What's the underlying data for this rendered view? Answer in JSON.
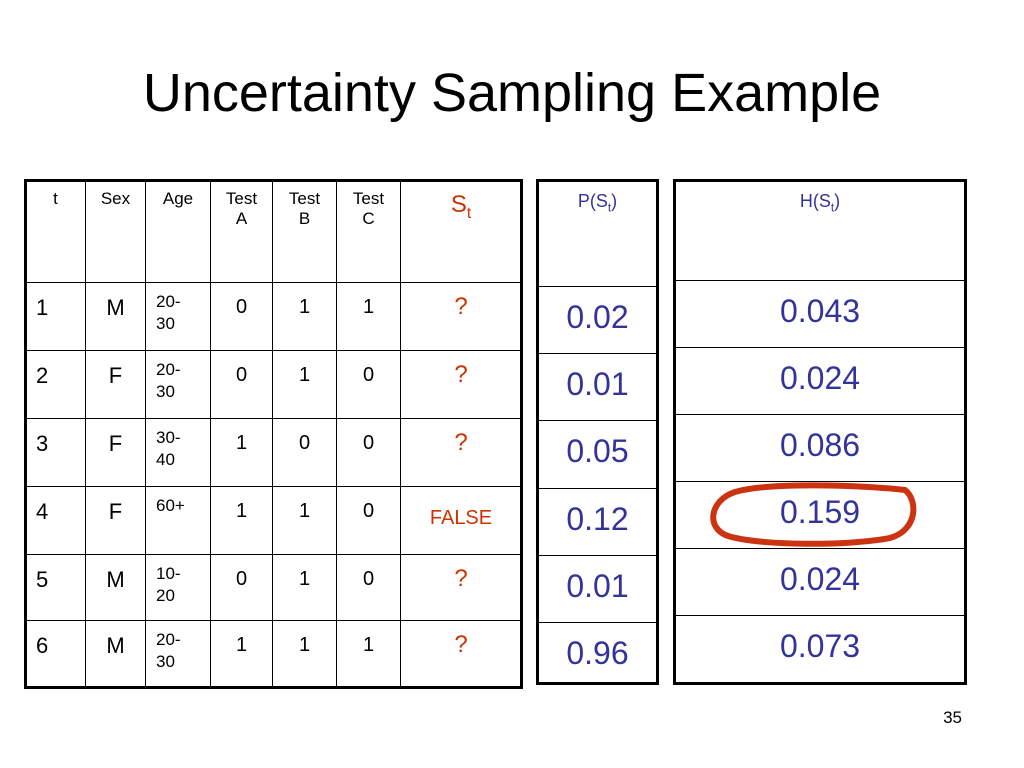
{
  "title": "Uncertainty Sampling Example",
  "table": {
    "headers": [
      "t",
      "Sex",
      "Age",
      "Test A",
      "Test B",
      "Test C",
      {
        "text": "S",
        "sub": "t"
      }
    ],
    "rows": [
      [
        "1",
        "M",
        "20-30",
        "0",
        "1",
        "1",
        "?"
      ],
      [
        "2",
        "F",
        "20-30",
        "0",
        "1",
        "0",
        "?"
      ],
      [
        "3",
        "F",
        "30-40",
        "1",
        "0",
        "0",
        "?"
      ],
      [
        "4",
        "F",
        "60+",
        "1",
        "1",
        "0",
        "FALSE"
      ],
      [
        "5",
        "M",
        "10-20",
        "0",
        "1",
        "0",
        "?"
      ],
      [
        "6",
        "M",
        "20-30",
        "1",
        "1",
        "1",
        "?"
      ]
    ]
  },
  "p_table": {
    "header": {
      "text": "P(S",
      "sub": "t",
      "after": ")"
    },
    "values": [
      "0.02",
      "0.01",
      "0.05",
      "0.12",
      "0.01",
      "0.96"
    ]
  },
  "h_table": {
    "header": {
      "text": "H(S",
      "sub": "t",
      "after": ")"
    },
    "values": [
      "0.043",
      "0.024",
      "0.086",
      "0.159",
      "0.024",
      "0.073"
    ]
  },
  "page_number": "35"
}
